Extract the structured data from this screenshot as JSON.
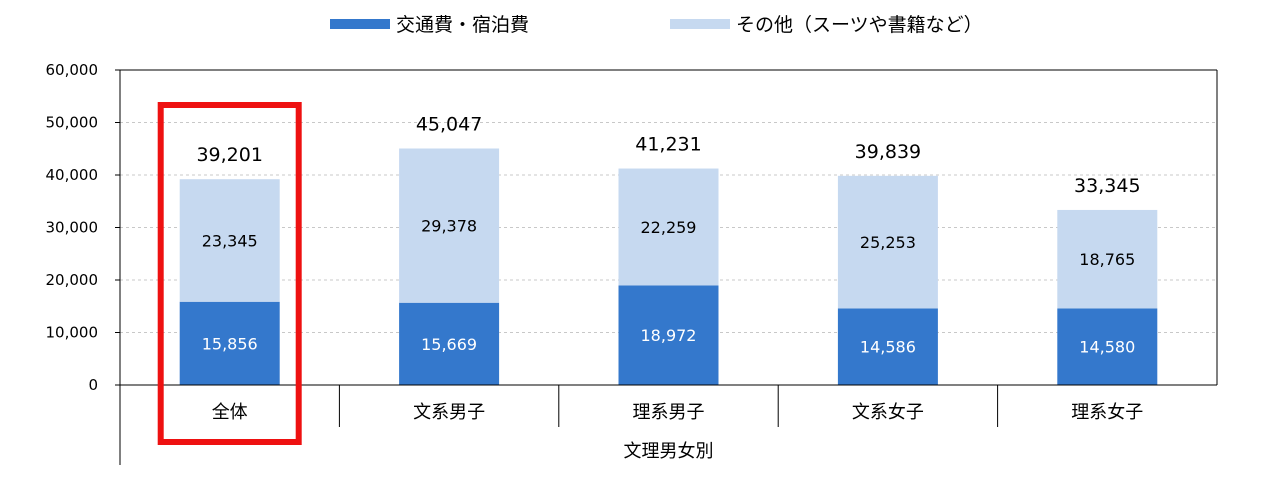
{
  "chart_data": {
    "type": "bar",
    "stacked": true,
    "categories": [
      "全体",
      "文系男子",
      "理系男子",
      "文系女子",
      "理系女子"
    ],
    "series": [
      {
        "name": "交通費・宿泊費",
        "values": [
          15856,
          15669,
          18972,
          14586,
          14580
        ],
        "color": "#3478cc"
      },
      {
        "name": "その他（スーツや書籍など）",
        "values": [
          23345,
          29378,
          22259,
          25253,
          18765
        ],
        "color": "#c6d9f0"
      }
    ],
    "totals": [
      39201,
      45047,
      41231,
      39839,
      33345
    ],
    "value_labels": [
      [
        "15,856",
        "15,669",
        "18,972",
        "14,586",
        "14,580"
      ],
      [
        "23,345",
        "29,378",
        "22,259",
        "25,253",
        "18,765"
      ]
    ],
    "total_labels": [
      "39,201",
      "45,047",
      "41,231",
      "39,839",
      "33,345"
    ],
    "ylim": [
      0,
      60000
    ],
    "yticks": [
      0,
      10000,
      20000,
      30000,
      40000,
      50000,
      60000
    ],
    "ytick_labels": [
      "0",
      "10,000",
      "20,000",
      "30,000",
      "40,000",
      "50,000",
      "60,000"
    ],
    "xlabel": "文理男女別",
    "ylabel": "",
    "grid": true,
    "legend_position": "top",
    "highlight": {
      "category": "全体",
      "color": "#ee1111"
    }
  },
  "legend": {
    "items": [
      {
        "label": "交通費・宿泊費",
        "color": "#3478cc"
      },
      {
        "label": "その他（スーツや書籍など）",
        "color": "#c6d9f0"
      }
    ]
  }
}
